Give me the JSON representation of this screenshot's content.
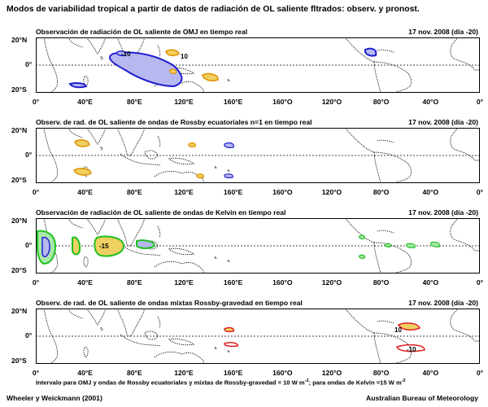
{
  "title": "Modos de variabilidad tropical a partir de datos de radiación de OL saliente fltrados: observ. y pronost.",
  "lat_labels": [
    "20°N",
    "0°",
    "20°S"
  ],
  "lon_labels": [
    "0°",
    "40°E",
    "80°E",
    "120°E",
    "160°E",
    "160°O",
    "120°O",
    "80°O",
    "40°O",
    "0°"
  ],
  "colors": {
    "negative_fill": "#b8b8f0",
    "negative_line": "#2020d0",
    "positive_fill": "#f0d060",
    "positive_line": "#e09000",
    "kelvin_fill": "#a8e8a8",
    "kelvin_line": "#20c020",
    "mrg_line": "#e02020",
    "coast": "#000000"
  },
  "panels": [
    {
      "title": "Observación de radiación de OL saliente de OMJ en tiempo real",
      "date": "17 nov. 2008 (día -20)",
      "contour_labels": [
        "-10",
        "10"
      ]
    },
    {
      "title": "Observ. de rad. de OL saliente de ondas de Rossby ecuatoriales n=1 en tiempo real",
      "date": "17 nov. 2008 (día -20)",
      "contour_labels": []
    },
    {
      "title": "Observación de radiación de OL saliente de ondas de Kelvin en tiempo real",
      "date": "17 nov. 2008 (día -20)",
      "contour_labels": [
        "-15"
      ]
    },
    {
      "title": "Observ. de rad. de OL saliente de ondas mixtas Rossby-gravedad en tiempo real",
      "date": "17 nov. 2008 (día -20)",
      "contour_labels": [
        "10",
        "-10"
      ]
    }
  ],
  "footnote_main": "Intervalo para OMJ y ondas de Rossby ecuatoriales y mixtas de Rossby-gravedad = 10 W m",
  "footnote_mid": "; para ondas de Kelvin =15 W m",
  "footnote_sup": "-2",
  "credit_left": "Wheeler y Weickmann (2001)",
  "credit_right": "Australian Bureau of Meteorology"
}
